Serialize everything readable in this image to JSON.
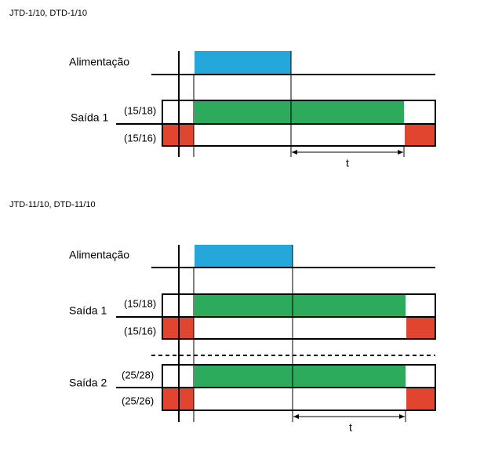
{
  "diagrams": [
    {
      "title": "JTD-1/10, DTD-1/10",
      "power_label": "Alimentação",
      "outputs": [
        {
          "label": "Saída 1",
          "contacts": [
            "(15/18)",
            "(15/16)"
          ]
        }
      ],
      "time_label": "t"
    },
    {
      "title": "JTD-11/10, DTD-11/10",
      "power_label": "Alimentação",
      "outputs": [
        {
          "label": "Saída 1",
          "contacts": [
            "(15/18)",
            "(15/16)"
          ]
        },
        {
          "label": "Saída 2",
          "contacts": [
            "(25/28)",
            "(25/26)"
          ]
        }
      ],
      "time_label": "t"
    }
  ]
}
